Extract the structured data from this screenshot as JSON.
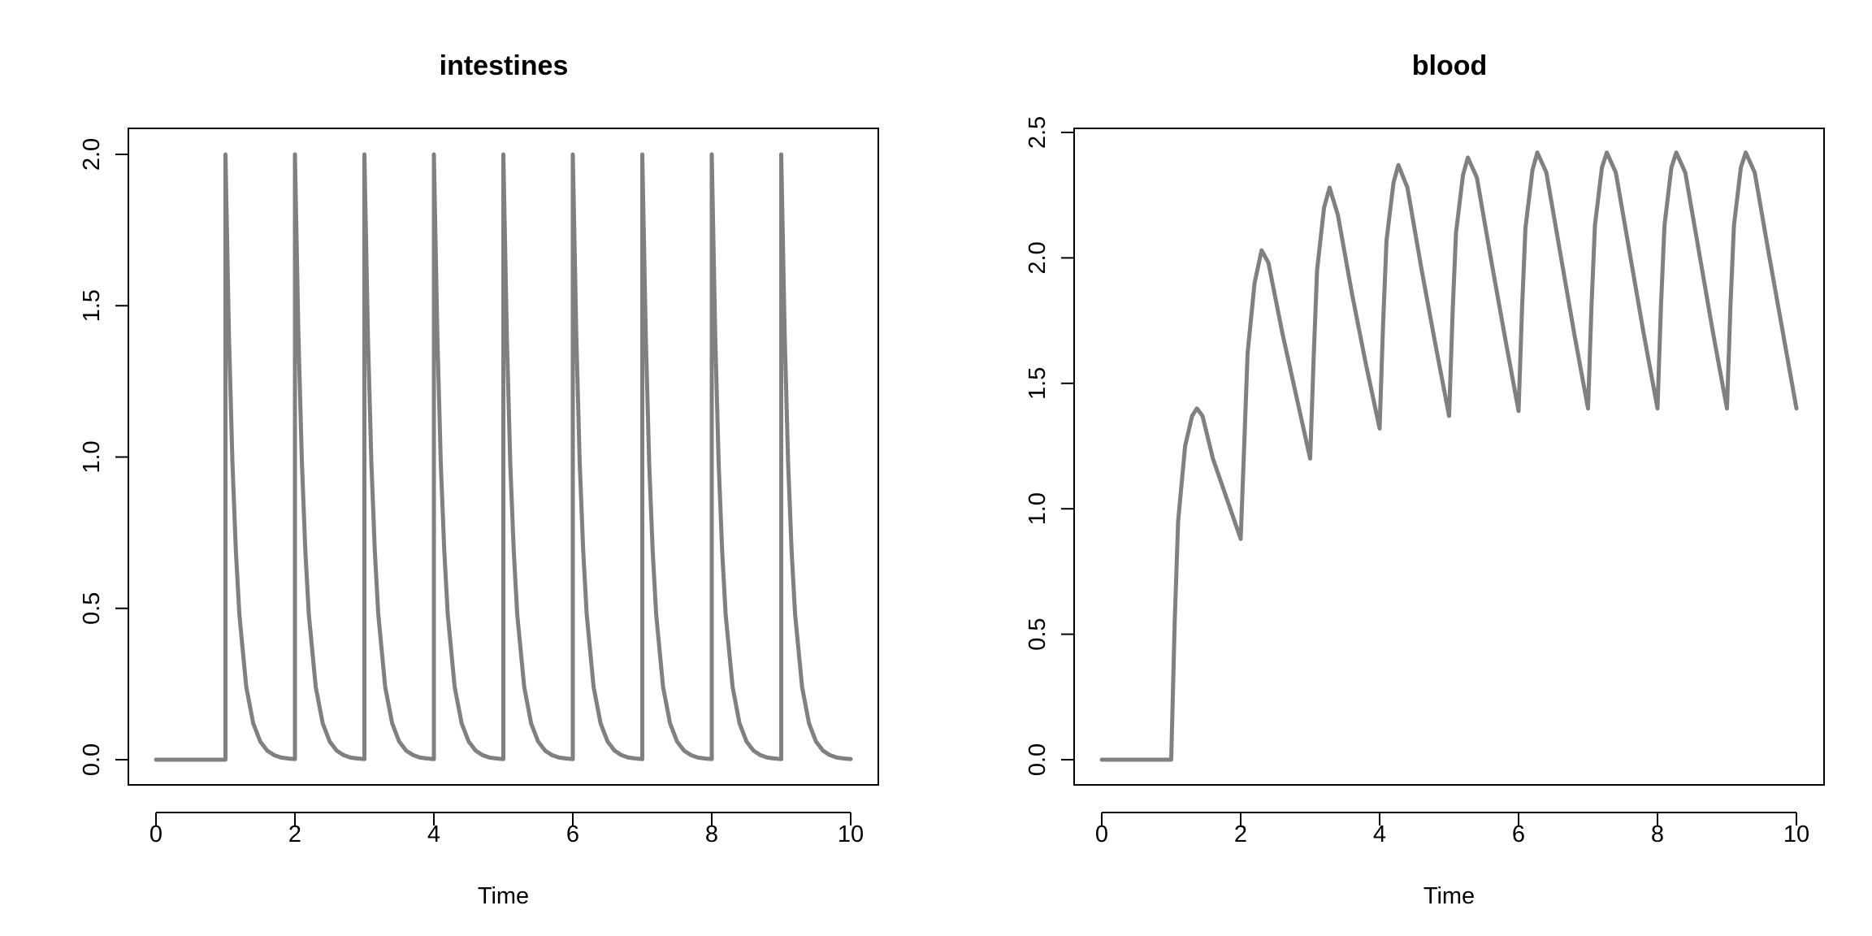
{
  "line_color": "#808080",
  "axis_color": "#000000",
  "chart_data": [
    {
      "type": "line",
      "title": "intestines",
      "xlabel": "Time",
      "ylabel": "",
      "xlim": [
        0,
        10
      ],
      "ylim": [
        0,
        2
      ],
      "x_ticks": [
        0,
        2,
        4,
        6,
        8,
        10
      ],
      "x_tick_labels": [
        "0",
        "2",
        "4",
        "6",
        "8",
        "10"
      ],
      "y_ticks": [
        0,
        0.5,
        1,
        1.5,
        2
      ],
      "y_tick_labels": [
        "0.0",
        "0.5",
        "1.0",
        "1.5",
        "2.0"
      ],
      "grid": false,
      "legend": "none",
      "series": [
        {
          "x": [
            0,
            1,
            1,
            1.05,
            1.1,
            1.15,
            1.2,
            1.3,
            1.4,
            1.5,
            1.6,
            1.7,
            1.8,
            1.9,
            2,
            2,
            2.05,
            2.1,
            2.15,
            2.2,
            2.3,
            2.4,
            2.5,
            2.6,
            2.7,
            2.8,
            2.9,
            3,
            3,
            3.05,
            3.1,
            3.15,
            3.2,
            3.3,
            3.4,
            3.5,
            3.6,
            3.7,
            3.8,
            3.9,
            4,
            4,
            4.05,
            4.1,
            4.15,
            4.2,
            4.3,
            4.4,
            4.5,
            4.6,
            4.7,
            4.8,
            4.9,
            5,
            5,
            5.05,
            5.1,
            5.15,
            5.2,
            5.3,
            5.4,
            5.5,
            5.6,
            5.7,
            5.8,
            5.9,
            6,
            6,
            6.05,
            6.1,
            6.15,
            6.2,
            6.3,
            6.4,
            6.5,
            6.6,
            6.7,
            6.8,
            6.9,
            7,
            7,
            7.05,
            7.1,
            7.15,
            7.2,
            7.3,
            7.4,
            7.5,
            7.6,
            7.7,
            7.8,
            7.9,
            8,
            8,
            8.05,
            8.1,
            8.15,
            8.2,
            8.3,
            8.4,
            8.5,
            8.6,
            8.7,
            8.8,
            8.9,
            9,
            9,
            9.05,
            9.1,
            9.15,
            9.2,
            9.3,
            9.4,
            9.5,
            9.6,
            9.7,
            9.8,
            9.9,
            10
          ],
          "y": [
            0,
            0,
            2.0,
            1.4,
            0.98,
            0.69,
            0.48,
            0.24,
            0.12,
            0.06,
            0.03,
            0.015,
            0.007,
            0.004,
            0.002,
            2.0,
            1.4,
            0.98,
            0.69,
            0.48,
            0.24,
            0.12,
            0.06,
            0.03,
            0.015,
            0.007,
            0.004,
            0.002,
            2.0,
            1.4,
            0.98,
            0.69,
            0.48,
            0.24,
            0.12,
            0.06,
            0.03,
            0.015,
            0.007,
            0.004,
            0.002,
            2.0,
            1.4,
            0.98,
            0.69,
            0.48,
            0.24,
            0.12,
            0.06,
            0.03,
            0.015,
            0.007,
            0.004,
            0.002,
            2.0,
            1.4,
            0.98,
            0.69,
            0.48,
            0.24,
            0.12,
            0.06,
            0.03,
            0.015,
            0.007,
            0.004,
            0.002,
            2.0,
            1.4,
            0.98,
            0.69,
            0.48,
            0.24,
            0.12,
            0.06,
            0.03,
            0.015,
            0.007,
            0.004,
            0.002,
            2.0,
            1.4,
            0.98,
            0.69,
            0.48,
            0.24,
            0.12,
            0.06,
            0.03,
            0.015,
            0.007,
            0.004,
            0.002,
            2.0,
            1.4,
            0.98,
            0.69,
            0.48,
            0.24,
            0.12,
            0.06,
            0.03,
            0.015,
            0.007,
            0.004,
            0.002,
            2.0,
            1.4,
            0.98,
            0.69,
            0.48,
            0.24,
            0.12,
            0.06,
            0.03,
            0.015,
            0.007,
            0.004,
            0.002
          ]
        }
      ]
    },
    {
      "type": "line",
      "title": "blood",
      "xlabel": "Time",
      "ylabel": "",
      "xlim": [
        0,
        10
      ],
      "ylim": [
        0,
        2.5
      ],
      "x_ticks": [
        0,
        2,
        4,
        6,
        8,
        10
      ],
      "x_tick_labels": [
        "0",
        "2",
        "4",
        "6",
        "8",
        "10"
      ],
      "y_ticks": [
        0,
        0.5,
        1,
        1.5,
        2,
        2.5
      ],
      "y_tick_labels": [
        "0.0",
        "0.5",
        "1.0",
        "1.5",
        "2.0",
        "2.5"
      ],
      "grid": false,
      "legend": "none",
      "series": [
        {
          "x": [
            0,
            1,
            1.05,
            1.1,
            1.2,
            1.3,
            1.37,
            1.45,
            1.6,
            1.8,
            2,
            2.05,
            2.1,
            2.2,
            2.3,
            2.4,
            2.6,
            2.8,
            3,
            3.05,
            3.1,
            3.2,
            3.28,
            3.4,
            3.6,
            3.8,
            4,
            4.05,
            4.1,
            4.2,
            4.27,
            4.4,
            4.6,
            4.8,
            5,
            5.05,
            5.1,
            5.2,
            5.27,
            5.4,
            5.6,
            5.8,
            6,
            6.05,
            6.1,
            6.2,
            6.27,
            6.4,
            6.6,
            6.8,
            7,
            7.05,
            7.1,
            7.2,
            7.27,
            7.4,
            7.6,
            7.8,
            8,
            8.05,
            8.1,
            8.2,
            8.27,
            8.4,
            8.6,
            8.8,
            9,
            9.05,
            9.1,
            9.2,
            9.27,
            9.4,
            9.6,
            9.8,
            10
          ],
          "y": [
            0,
            0,
            0.55,
            0.95,
            1.25,
            1.37,
            1.4,
            1.37,
            1.2,
            1.04,
            0.88,
            1.25,
            1.62,
            1.9,
            2.03,
            1.98,
            1.7,
            1.45,
            1.2,
            1.6,
            1.95,
            2.2,
            2.28,
            2.17,
            1.86,
            1.58,
            1.32,
            1.74,
            2.07,
            2.3,
            2.37,
            2.28,
            1.96,
            1.66,
            1.37,
            1.78,
            2.1,
            2.33,
            2.4,
            2.32,
            2.0,
            1.69,
            1.39,
            1.8,
            2.12,
            2.35,
            2.42,
            2.34,
            2.02,
            1.7,
            1.4,
            1.81,
            2.13,
            2.36,
            2.42,
            2.34,
            2.02,
            1.7,
            1.4,
            1.81,
            2.13,
            2.36,
            2.42,
            2.34,
            2.02,
            1.7,
            1.4,
            1.81,
            2.13,
            2.36,
            2.42,
            2.34,
            2.02,
            1.71,
            1.4
          ]
        }
      ]
    }
  ]
}
